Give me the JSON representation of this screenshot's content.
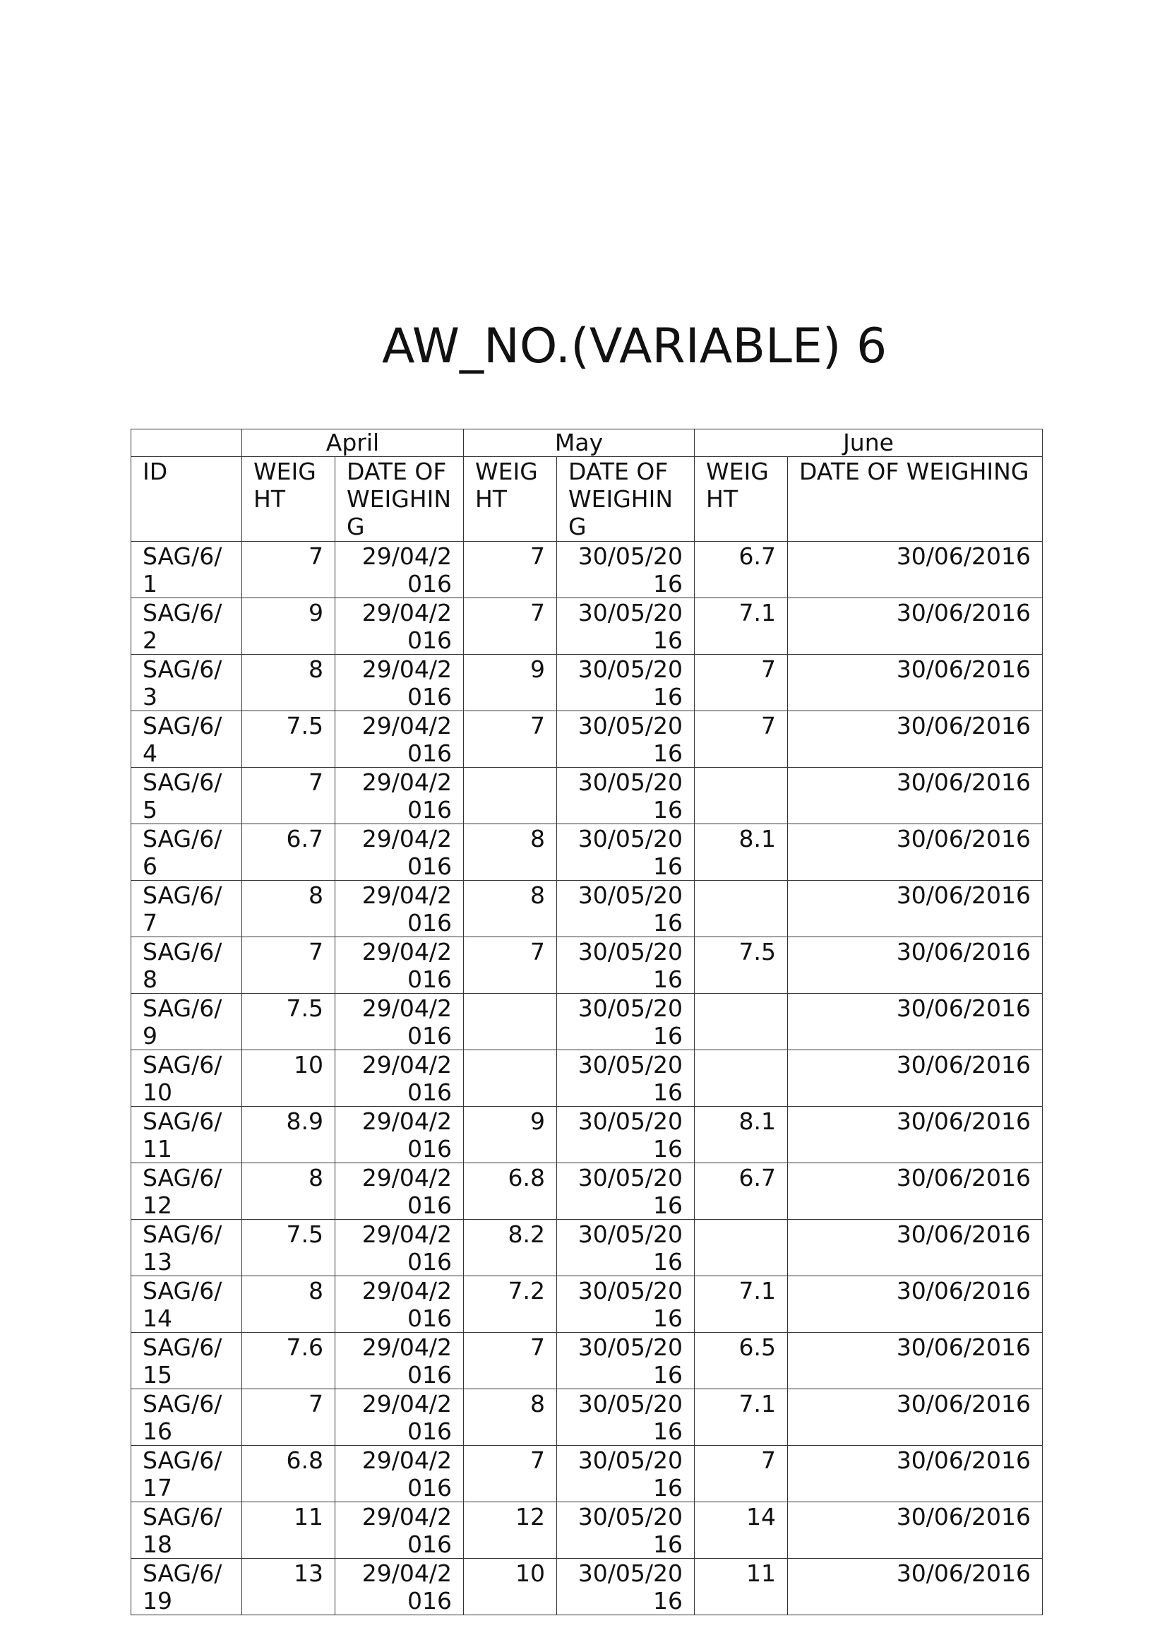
{
  "title": "AW_NO.(VARIABLE) 6",
  "table": {
    "months": [
      "April",
      "May",
      "June"
    ],
    "headers": [
      "ID",
      "WEIGHT",
      "DATE OF WEIGHING",
      "WEIGHT",
      "DATE OF WEIGHING",
      "WEIGHT",
      "DATE OF WEIGHING"
    ],
    "rows": [
      [
        "SAG/6/1",
        "7",
        "29/04/2016",
        "7",
        "30/05/2016",
        "6.7",
        "30/06/2016"
      ],
      [
        "SAG/6/2",
        "9",
        "29/04/2016",
        "7",
        "30/05/2016",
        "7.1",
        "30/06/2016"
      ],
      [
        "SAG/6/3",
        "8",
        "29/04/2016",
        "9",
        "30/05/2016",
        "7",
        "30/06/2016"
      ],
      [
        "SAG/6/4",
        "7.5",
        "29/04/2016",
        "7",
        "30/05/2016",
        "7",
        "30/06/2016"
      ],
      [
        "SAG/6/5",
        "7",
        "29/04/2016",
        "",
        "30/05/2016",
        "",
        "30/06/2016"
      ],
      [
        "SAG/6/6",
        "6.7",
        "29/04/2016",
        "8",
        "30/05/2016",
        "8.1",
        "30/06/2016"
      ],
      [
        "SAG/6/7",
        "8",
        "29/04/2016",
        "8",
        "30/05/2016",
        "",
        "30/06/2016"
      ],
      [
        "SAG/6/8",
        "7",
        "29/04/2016",
        "7",
        "30/05/2016",
        "7.5",
        "30/06/2016"
      ],
      [
        "SAG/6/9",
        "7.5",
        "29/04/2016",
        "",
        "30/05/2016",
        "",
        "30/06/2016"
      ],
      [
        "SAG/6/10",
        "10",
        "29/04/2016",
        "",
        "30/05/2016",
        "",
        "30/06/2016"
      ],
      [
        "SAG/6/11",
        "8.9",
        "29/04/2016",
        "9",
        "30/05/2016",
        "8.1",
        "30/06/2016"
      ],
      [
        "SAG/6/12",
        "8",
        "29/04/2016",
        "6.8",
        "30/05/2016",
        "6.7",
        "30/06/2016"
      ],
      [
        "SAG/6/13",
        "7.5",
        "29/04/2016",
        "8.2",
        "30/05/2016",
        "",
        "30/06/2016"
      ],
      [
        "SAG/6/14",
        "8",
        "29/04/2016",
        "7.2",
        "30/05/2016",
        "7.1",
        "30/06/2016"
      ],
      [
        "SAG/6/15",
        "7.6",
        "29/04/2016",
        "7",
        "30/05/2016",
        "6.5",
        "30/06/2016"
      ],
      [
        "SAG/6/16",
        "7",
        "29/04/2016",
        "8",
        "30/05/2016",
        "7.1",
        "30/06/2016"
      ],
      [
        "SAG/6/17",
        "6.8",
        "29/04/2016",
        "7",
        "30/05/2016",
        "7",
        "30/06/2016"
      ],
      [
        "SAG/6/18",
        "11",
        "29/04/2016",
        "12",
        "30/05/2016",
        "14",
        "30/06/2016"
      ],
      [
        "SAG/6/19",
        "13",
        "29/04/2016",
        "10",
        "30/05/2016",
        "11",
        "30/06/2016"
      ]
    ]
  }
}
